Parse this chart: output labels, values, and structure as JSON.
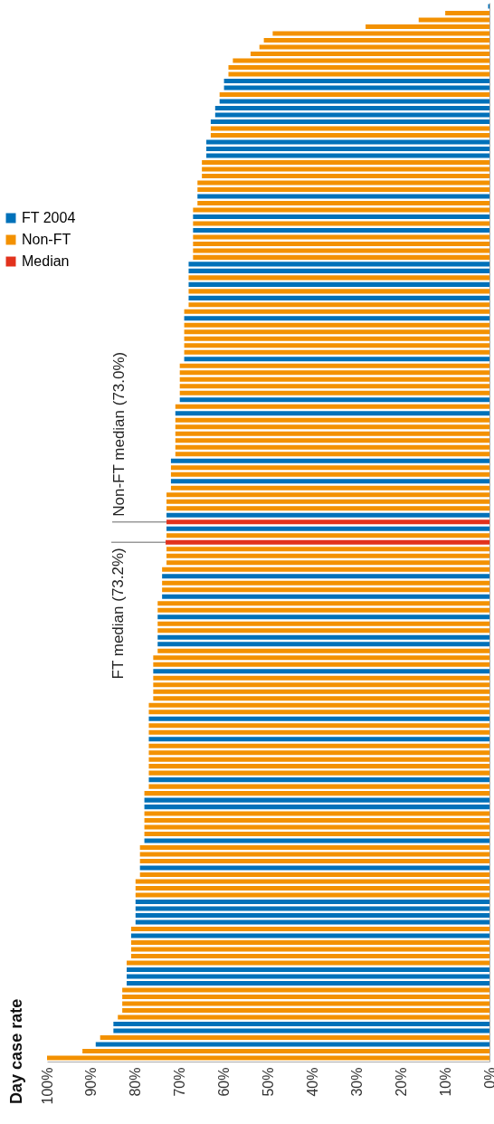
{
  "chart_data": {
    "type": "bar",
    "orientation": "horizontal",
    "title": "Day case rate",
    "categories": [
      null,
      null,
      null,
      null,
      null,
      null,
      null,
      null,
      null,
      null,
      null,
      null,
      null,
      null,
      null,
      null,
      null,
      null,
      null,
      null,
      null,
      null,
      null,
      null,
      null,
      null,
      null,
      null,
      null,
      null,
      null,
      null,
      null,
      null,
      null,
      null,
      null,
      null,
      null,
      null,
      null,
      null,
      null,
      null,
      null,
      null,
      null,
      null,
      null,
      null,
      null,
      null,
      null,
      null,
      null,
      null,
      null,
      null,
      null,
      null,
      null,
      null,
      null,
      null,
      null,
      null,
      null,
      null,
      null,
      null,
      null,
      null,
      null,
      null,
      null,
      null,
      null,
      null,
      null,
      null,
      null,
      null,
      null,
      null,
      null,
      null,
      null,
      null,
      null,
      null,
      null,
      null,
      null,
      null,
      null,
      null,
      null,
      null,
      null,
      null,
      null,
      null,
      null,
      null,
      null,
      null,
      null,
      null,
      null,
      null,
      null,
      null,
      null,
      null,
      null,
      null,
      null,
      null,
      null,
      null,
      null,
      null,
      null,
      null,
      null,
      null,
      null,
      null,
      null,
      null,
      null,
      null,
      null,
      null,
      null,
      null,
      null,
      null,
      null,
      null,
      null,
      null,
      null,
      null,
      null,
      null,
      null,
      null,
      null,
      null,
      null,
      null,
      null,
      null,
      null,
      null
    ],
    "series": [
      {
        "name": "FT 2004",
        "color": "#0071b9",
        "values": [
          0.3,
          null,
          null,
          null,
          null,
          null,
          null,
          null,
          null,
          null,
          null,
          60,
          60,
          null,
          61,
          62,
          62,
          63,
          null,
          null,
          64,
          64,
          64,
          null,
          null,
          null,
          null,
          null,
          66,
          null,
          null,
          67,
          null,
          67,
          null,
          null,
          null,
          null,
          68,
          68,
          null,
          68,
          null,
          68,
          null,
          null,
          69,
          null,
          null,
          null,
          null,
          null,
          69,
          null,
          null,
          null,
          null,
          null,
          70,
          null,
          71,
          null,
          null,
          null,
          null,
          null,
          null,
          72,
          null,
          null,
          72,
          null,
          null,
          null,
          null,
          73,
          null,
          73,
          null,
          null,
          null,
          null,
          null,
          null,
          74,
          null,
          null,
          74,
          null,
          null,
          75,
          null,
          null,
          75,
          75,
          null,
          null,
          null,
          76,
          null,
          null,
          null,
          null,
          null,
          null,
          77,
          null,
          null,
          77,
          null,
          null,
          null,
          null,
          null,
          77,
          null,
          null,
          78,
          78,
          null,
          null,
          null,
          null,
          78,
          null,
          null,
          null,
          79,
          null,
          null,
          null,
          null,
          80,
          80,
          80,
          80,
          null,
          81,
          null,
          null,
          null,
          null,
          82,
          82,
          82,
          null,
          null,
          null,
          null,
          null,
          85,
          85,
          null,
          89,
          null,
          null
        ]
      },
      {
        "name": "Non-FT",
        "color": "#f39100",
        "values": [
          null,
          10,
          16,
          28,
          49,
          51,
          52,
          54,
          58,
          59,
          59,
          null,
          null,
          61,
          null,
          null,
          null,
          null,
          63,
          63,
          null,
          null,
          null,
          65,
          65,
          65,
          66,
          66,
          null,
          66,
          67,
          null,
          67,
          null,
          67,
          67,
          67,
          67,
          null,
          null,
          68,
          null,
          68,
          null,
          68,
          69,
          null,
          69,
          69,
          69,
          69,
          69,
          null,
          70,
          70,
          70,
          70,
          70,
          null,
          71,
          null,
          71,
          71,
          71,
          71,
          71,
          71,
          null,
          72,
          72,
          null,
          72,
          73,
          73,
          73,
          null,
          null,
          null,
          73,
          null,
          73,
          73,
          73,
          74,
          null,
          74,
          74,
          null,
          75,
          75,
          null,
          75,
          75,
          null,
          null,
          75,
          76,
          76,
          null,
          76,
          76,
          76,
          76,
          77,
          77,
          null,
          77,
          77,
          null,
          77,
          77,
          77,
          77,
          77,
          null,
          77,
          78,
          null,
          null,
          78,
          78,
          78,
          78,
          null,
          79,
          79,
          79,
          null,
          79,
          80,
          80,
          80,
          null,
          null,
          null,
          null,
          81,
          null,
          81,
          81,
          81,
          82,
          null,
          null,
          null,
          83,
          83,
          83,
          83,
          84,
          null,
          null,
          88,
          null,
          92,
          100
        ]
      },
      {
        "name": "Median",
        "color": "#e2321d",
        "values": [
          null,
          null,
          null,
          null,
          null,
          null,
          null,
          null,
          null,
          null,
          null,
          null,
          null,
          null,
          null,
          null,
          null,
          null,
          null,
          null,
          null,
          null,
          null,
          null,
          null,
          null,
          null,
          null,
          null,
          null,
          null,
          null,
          null,
          null,
          null,
          null,
          null,
          null,
          null,
          null,
          null,
          null,
          null,
          null,
          null,
          null,
          null,
          null,
          null,
          null,
          null,
          null,
          null,
          null,
          null,
          null,
          null,
          null,
          null,
          null,
          null,
          null,
          null,
          null,
          null,
          null,
          null,
          null,
          null,
          null,
          null,
          null,
          null,
          null,
          null,
          null,
          73.0,
          null,
          null,
          73.2,
          null,
          null,
          null,
          null,
          null,
          null,
          null,
          null,
          null,
          null,
          null,
          null,
          null,
          null,
          null,
          null,
          null,
          null,
          null,
          null,
          null,
          null,
          null,
          null,
          null,
          null,
          null,
          null,
          null,
          null,
          null,
          null,
          null,
          null,
          null,
          null,
          null,
          null,
          null,
          null,
          null,
          null,
          null,
          null,
          null,
          null,
          null,
          null,
          null,
          null,
          null,
          null,
          null,
          null,
          null,
          null,
          null,
          null,
          null,
          null,
          null,
          null,
          null,
          null,
          null,
          null,
          null,
          null,
          null,
          null,
          null,
          null,
          null,
          null,
          null,
          null
        ]
      }
    ],
    "xlim": [
      100,
      0
    ],
    "xticks": [
      {
        "value": 100,
        "label": "100%"
      },
      {
        "value": 90,
        "label": "90%"
      },
      {
        "value": 80,
        "label": "80%"
      },
      {
        "value": 70,
        "label": "70%"
      },
      {
        "value": 60,
        "label": "60%"
      },
      {
        "value": 50,
        "label": "50%"
      },
      {
        "value": 40,
        "label": "40%"
      },
      {
        "value": 30,
        "label": "30%"
      },
      {
        "value": 20,
        "label": "20%"
      },
      {
        "value": 10,
        "label": "10%"
      },
      {
        "value": 0,
        "label": "0%"
      }
    ],
    "annotations": [
      {
        "text": "Non-FT median (73.0%)",
        "x": 73.0
      },
      {
        "text": "FT median (73.2%)",
        "x": 73.2
      }
    ],
    "legend": "top",
    "grid": false
  }
}
